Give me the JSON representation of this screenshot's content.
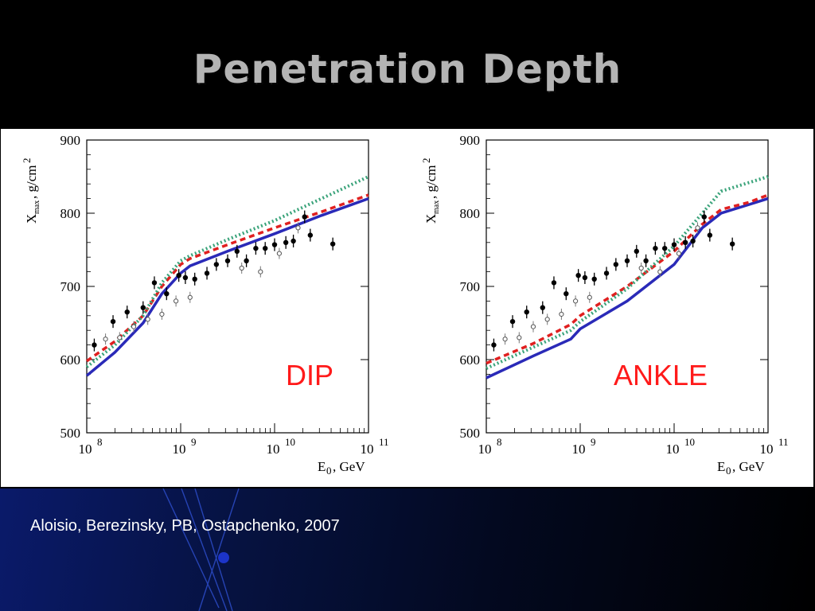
{
  "slide": {
    "title": "Penetration Depth",
    "citation": "Aloisio, Berezinsky, PB, Ostapchenko, 2007"
  },
  "colors": {
    "solid_line": "#2a2ab8",
    "dashed_line": "#e02020",
    "dotted_line": "#3aa37a",
    "label": "#ff1a1a"
  },
  "chart_data": [
    {
      "type": "line",
      "label": "DIP",
      "xlabel": "E0, GeV",
      "ylabel": "Xmax, g/cm2",
      "x_scale": "log",
      "xlim": [
        100000000.0,
        100000000000.0
      ],
      "ylim": [
        500,
        900
      ],
      "yticks": [
        500,
        600,
        700,
        800,
        900
      ],
      "xtick_labels": [
        "10",
        "10",
        "10",
        "10"
      ],
      "xtick_exponents": [
        "8",
        "9",
        "10",
        "11"
      ],
      "series": [
        {
          "style": "solid",
          "log10E": [
            8.0,
            8.3,
            8.6,
            8.8,
            9.0,
            9.1,
            9.5,
            10.0,
            10.5,
            11.0
          ],
          "y": [
            578,
            610,
            650,
            690,
            718,
            728,
            748,
            772,
            797,
            820
          ]
        },
        {
          "style": "dashed",
          "log10E": [
            8.0,
            8.3,
            8.6,
            8.8,
            9.0,
            9.1,
            9.5,
            10.0,
            10.5,
            11.0
          ],
          "y": [
            598,
            625,
            660,
            700,
            730,
            738,
            757,
            780,
            802,
            825
          ]
        },
        {
          "style": "dotted",
          "log10E": [
            8.0,
            8.3,
            8.6,
            8.8,
            9.0,
            9.1,
            9.5,
            10.0,
            10.5,
            11.0
          ],
          "y": [
            590,
            620,
            660,
            705,
            735,
            742,
            764,
            790,
            820,
            850
          ]
        }
      ],
      "points_filled": [
        {
          "log10E": 8.08,
          "y": 620
        },
        {
          "log10E": 8.28,
          "y": 652
        },
        {
          "log10E": 8.43,
          "y": 665
        },
        {
          "log10E": 8.6,
          "y": 671
        },
        {
          "log10E": 8.72,
          "y": 705
        },
        {
          "log10E": 8.85,
          "y": 690
        },
        {
          "log10E": 8.98,
          "y": 715
        },
        {
          "log10E": 9.05,
          "y": 712
        },
        {
          "log10E": 9.15,
          "y": 710
        },
        {
          "log10E": 9.28,
          "y": 718
        },
        {
          "log10E": 9.38,
          "y": 730
        },
        {
          "log10E": 9.5,
          "y": 735
        },
        {
          "log10E": 9.6,
          "y": 748
        },
        {
          "log10E": 9.7,
          "y": 735
        },
        {
          "log10E": 9.8,
          "y": 752
        },
        {
          "log10E": 9.9,
          "y": 752
        },
        {
          "log10E": 10.0,
          "y": 757
        },
        {
          "log10E": 10.12,
          "y": 760
        },
        {
          "log10E": 10.2,
          "y": 762
        },
        {
          "log10E": 10.32,
          "y": 795
        },
        {
          "log10E": 10.38,
          "y": 770
        },
        {
          "log10E": 10.62,
          "y": 758
        }
      ],
      "points_open": [
        {
          "log10E": 8.2,
          "y": 628
        },
        {
          "log10E": 8.35,
          "y": 630
        },
        {
          "log10E": 8.5,
          "y": 645
        },
        {
          "log10E": 8.65,
          "y": 655
        },
        {
          "log10E": 8.8,
          "y": 662
        },
        {
          "log10E": 8.95,
          "y": 680
        },
        {
          "log10E": 9.1,
          "y": 685
        },
        {
          "log10E": 9.65,
          "y": 725
        },
        {
          "log10E": 9.85,
          "y": 720
        },
        {
          "log10E": 10.05,
          "y": 745
        },
        {
          "log10E": 10.25,
          "y": 780
        }
      ]
    },
    {
      "type": "line",
      "label": "ANKLE",
      "xlabel": "E0, GeV",
      "ylabel": "Xmax, g/cm2",
      "x_scale": "log",
      "xlim": [
        100000000.0,
        100000000000.0
      ],
      "ylim": [
        500,
        900
      ],
      "yticks": [
        500,
        600,
        700,
        800,
        900
      ],
      "xtick_labels": [
        "10",
        "10",
        "10",
        "10"
      ],
      "xtick_exponents": [
        "8",
        "9",
        "10",
        "11"
      ],
      "series": [
        {
          "style": "solid",
          "log10E": [
            8.0,
            8.5,
            8.9,
            9.0,
            9.5,
            10.0,
            10.3,
            10.5,
            10.8,
            11.0
          ],
          "y": [
            575,
            605,
            628,
            642,
            680,
            730,
            780,
            800,
            812,
            820
          ]
        },
        {
          "style": "dashed",
          "log10E": [
            8.0,
            8.5,
            8.9,
            9.0,
            9.5,
            10.0,
            10.3,
            10.5,
            10.8,
            11.0
          ],
          "y": [
            595,
            622,
            648,
            660,
            700,
            748,
            785,
            805,
            815,
            825
          ]
        },
        {
          "style": "dotted",
          "log10E": [
            8.0,
            8.5,
            8.9,
            9.0,
            9.5,
            10.0,
            10.3,
            10.5,
            10.8,
            11.0
          ],
          "y": [
            588,
            617,
            640,
            652,
            697,
            755,
            800,
            830,
            842,
            850
          ]
        }
      ],
      "points_filled": [
        {
          "log10E": 8.08,
          "y": 620
        },
        {
          "log10E": 8.28,
          "y": 652
        },
        {
          "log10E": 8.43,
          "y": 665
        },
        {
          "log10E": 8.6,
          "y": 671
        },
        {
          "log10E": 8.72,
          "y": 705
        },
        {
          "log10E": 8.85,
          "y": 690
        },
        {
          "log10E": 8.98,
          "y": 715
        },
        {
          "log10E": 9.05,
          "y": 712
        },
        {
          "log10E": 9.15,
          "y": 710
        },
        {
          "log10E": 9.28,
          "y": 718
        },
        {
          "log10E": 9.38,
          "y": 730
        },
        {
          "log10E": 9.5,
          "y": 735
        },
        {
          "log10E": 9.6,
          "y": 748
        },
        {
          "log10E": 9.7,
          "y": 735
        },
        {
          "log10E": 9.8,
          "y": 752
        },
        {
          "log10E": 9.9,
          "y": 752
        },
        {
          "log10E": 10.0,
          "y": 757
        },
        {
          "log10E": 10.12,
          "y": 760
        },
        {
          "log10E": 10.2,
          "y": 762
        },
        {
          "log10E": 10.32,
          "y": 795
        },
        {
          "log10E": 10.38,
          "y": 770
        },
        {
          "log10E": 10.62,
          "y": 758
        }
      ],
      "points_open": [
        {
          "log10E": 8.2,
          "y": 628
        },
        {
          "log10E": 8.35,
          "y": 630
        },
        {
          "log10E": 8.5,
          "y": 645
        },
        {
          "log10E": 8.65,
          "y": 655
        },
        {
          "log10E": 8.8,
          "y": 662
        },
        {
          "log10E": 8.95,
          "y": 680
        },
        {
          "log10E": 9.1,
          "y": 685
        },
        {
          "log10E": 9.65,
          "y": 725
        },
        {
          "log10E": 9.85,
          "y": 720
        },
        {
          "log10E": 10.05,
          "y": 745
        },
        {
          "log10E": 10.25,
          "y": 780
        }
      ]
    }
  ]
}
